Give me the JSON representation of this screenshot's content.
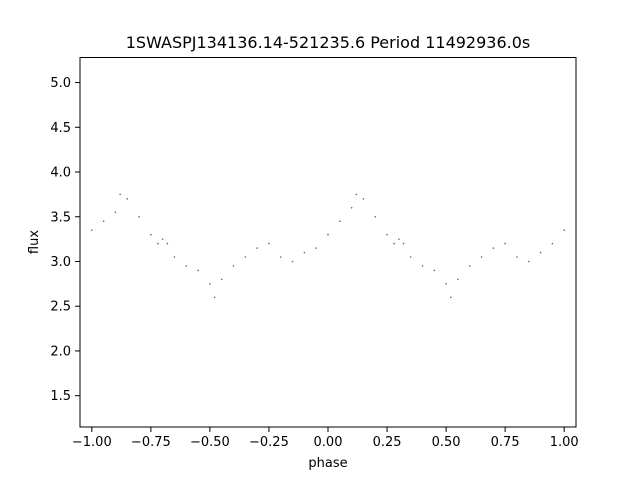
{
  "chart_data": {
    "type": "scatter",
    "title": "1SWASPJ134136.14-521235.6 Period 11492936.0s",
    "xlabel": "phase",
    "ylabel": "flux",
    "xlim": [
      -1.05,
      1.05
    ],
    "ylim": [
      1.15,
      5.28
    ],
    "xticks": [
      -1.0,
      -0.75,
      -0.5,
      -0.25,
      0.0,
      0.25,
      0.5,
      0.75,
      1.0
    ],
    "xtick_labels": [
      "−1.00",
      "−0.75",
      "−0.50",
      "−0.25",
      "0.00",
      "0.25",
      "0.50",
      "0.75",
      "1.00"
    ],
    "yticks": [
      1.5,
      2.0,
      2.5,
      3.0,
      3.5,
      4.0,
      4.5,
      5.0
    ],
    "ytick_labels": [
      "1.5",
      "2.0",
      "2.5",
      "3.0",
      "3.5",
      "4.0",
      "4.5",
      "5.0"
    ],
    "grid": false,
    "marker_color": "#1f77b4",
    "series": [
      {
        "x": [
          -1.0,
          -0.95,
          -0.9,
          -0.88,
          -0.85,
          -0.8,
          -0.75,
          -0.72,
          -0.7,
          -0.68,
          -0.65,
          -0.6,
          -0.55,
          -0.5,
          -0.48,
          -0.45,
          -0.4,
          -0.35,
          -0.3,
          -0.25,
          -0.2,
          -0.15,
          -0.1,
          -0.05,
          0.0,
          0.05,
          0.1,
          0.12,
          0.15,
          0.2,
          0.25,
          0.28,
          0.3,
          0.32,
          0.35,
          0.4,
          0.45,
          0.5,
          0.52,
          0.55,
          0.6,
          0.65,
          0.7,
          0.75,
          0.8,
          0.85,
          0.9,
          0.95,
          1.0
        ],
        "y": [
          3.35,
          3.45,
          3.55,
          3.75,
          3.7,
          3.5,
          3.3,
          3.2,
          3.25,
          3.2,
          3.05,
          2.95,
          2.9,
          2.75,
          2.6,
          2.8,
          2.95,
          3.05,
          3.15,
          3.2,
          3.05,
          3.0,
          3.1,
          3.15,
          3.3,
          3.45,
          3.6,
          3.75,
          3.7,
          3.5,
          3.3,
          3.2,
          3.25,
          3.2,
          3.05,
          2.95,
          2.9,
          2.75,
          2.6,
          2.8,
          2.95,
          3.05,
          3.15,
          3.2,
          3.05,
          3.0,
          3.1,
          3.2,
          3.35
        ]
      }
    ]
  }
}
